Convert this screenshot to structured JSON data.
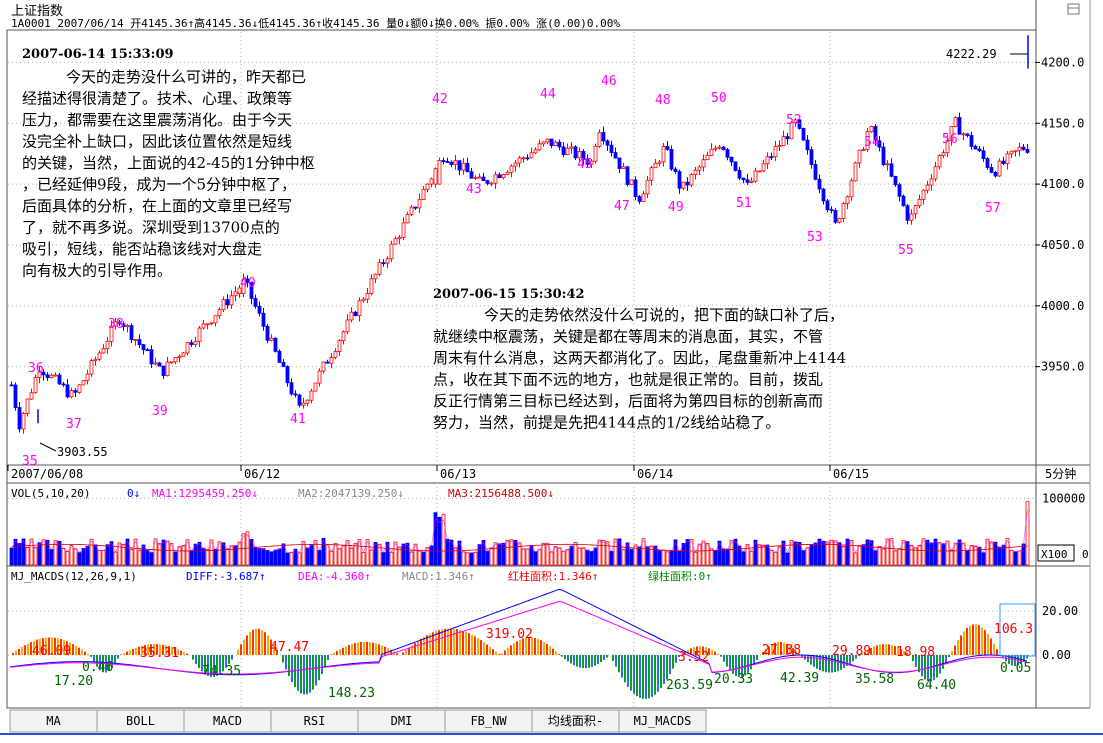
{
  "header": {
    "title": "上证指数",
    "info_line": "1A0001 2007/06/14 开4145.36↑高4145.36↓低4145.36↑收4145.36 量0↓额0↓换0.00% 振0.00% 涨(0.00)0.00%"
  },
  "annotations": {
    "note1_date": "2007-06-14 15:33:09",
    "note1_lines": [
      "今天的走势没什么可讲的，昨天都已",
      "经描述得很清楚了。技术、心理、政策等",
      "压力，都需要在这里震荡消化。由于今天",
      "没完全补上缺口，因此该位置依然是短线",
      "的关键，当然，上面说的42-45的1分钟中枢",
      "，已经延伸9段，成为一个5分钟中枢了，",
      "后面具体的分析，在上面的文章里已经写",
      "了，就不再多说。深圳受到13700点的",
      "吸引，短线，能否站稳该线对大盘走",
      "向有极大的引导作用。"
    ],
    "note2_date": "2007-06-15 15:30:42",
    "note2_lines": [
      "今天的走势依然没什么可说的，把下面的缺口补了后，",
      "就继续中枢震荡，关键是都在等周末的消息面，其实，不管",
      "周末有什么消息，这两天都消化了。因此，尾盘重新冲上4144",
      "点，收在其下面不远的地方，也就是很正常的。目前，拨乱",
      "反正行情第三目标已经达到，后面将为第四目标的创新高而",
      "努力，当然，前提是先把4144点的1/2线给站稳了。"
    ],
    "hi_label": "4222.29",
    "lo_label": "3903.55"
  },
  "main_chart": {
    "period": "5分钟",
    "date_labels": [
      "2007/06/08",
      "06/12",
      "06/13",
      "06/14",
      "06/15"
    ],
    "wave_numbers": [
      "35",
      "36",
      "37",
      "38",
      "39",
      "40",
      "41",
      "42",
      "43",
      "44",
      "45",
      "46",
      "47",
      "48",
      "49",
      "50",
      "51",
      "52",
      "53",
      "54",
      "55",
      "56",
      "57"
    ]
  },
  "volume_panel": {
    "name": "VOL(5,10,20)",
    "value": "0↓",
    "ma1": "MA1:1295459.250↓",
    "ma2": "MA2:2047139.250↓",
    "ma3": "MA3:2156488.500↓",
    "scale_label": "X100",
    "zero_label": "0"
  },
  "macd_panel": {
    "name": "MJ_MACDS(12,26,9,1)",
    "diff": "DIFF:-3.687↑",
    "dea": "DEA:-4.360↑",
    "macd": "MACD:1.346↑",
    "red_area": "红柱面积:1.346↑",
    "green_area": "绿柱面积:0↑",
    "area_labels_red": [
      "46.09",
      "35.31",
      "47.47",
      "319.02",
      "3.52",
      "27.88",
      "29.89",
      "18.98",
      "106.3"
    ],
    "area_labels_green": [
      "17.20",
      "0.46",
      "74.35",
      "148.23",
      "263.59",
      "20.33",
      "42.39",
      "35.58",
      "64.40",
      "0.05"
    ]
  },
  "tabs": [
    "MA",
    "BOLL",
    "MACD",
    "RSI",
    "DMI",
    "FB_NW",
    "均线面积-",
    "MJ_MACDS"
  ],
  "colors": {
    "up": "#ff0000",
    "down": "#0000ff",
    "wave_label": "#ff00ff",
    "diff_line": "#0000ff",
    "dea_line": "#ff00ff",
    "green_bar": "#00aa00",
    "grid": "#b0b0b0"
  },
  "chart_data": [
    {
      "type": "candlestick",
      "title": "上证指数",
      "ylim": [
        3870,
        4225
      ],
      "y_ticks": [
        3950,
        4000,
        4050,
        4100,
        4150,
        4200
      ],
      "x_sessions": [
        "2007/06/08",
        "06/12",
        "06/13",
        "06/14",
        "06/15"
      ],
      "annotated_high": 4222.29,
      "annotated_low": 3903.55,
      "wave_points": [
        {
          "label": "35",
          "value": 3903
        },
        {
          "label": "36",
          "value": 3950
        },
        {
          "label": "37",
          "value": 3925
        },
        {
          "label": "38",
          "value": 3990
        },
        {
          "label": "39",
          "value": 3945
        },
        {
          "label": "40",
          "value": 4020
        },
        {
          "label": "41",
          "value": 3915
        },
        {
          "label": "42",
          "value": 4125
        },
        {
          "label": "43",
          "value": 4100
        },
        {
          "label": "44",
          "value": 4135
        },
        {
          "label": "45",
          "value": 4118
        },
        {
          "label": "46",
          "value": 4148
        },
        {
          "label": "47",
          "value": 4088
        },
        {
          "label": "48",
          "value": 4130
        },
        {
          "label": "49",
          "value": 4095
        },
        {
          "label": "50",
          "value": 4135
        },
        {
          "label": "51",
          "value": 4098
        },
        {
          "label": "52",
          "value": 4150
        },
        {
          "label": "53",
          "value": 4066
        },
        {
          "label": "54",
          "value": 4147
        },
        {
          "label": "55",
          "value": 4070
        },
        {
          "label": "56",
          "value": 4150
        },
        {
          "label": "57",
          "value": 4110
        }
      ]
    },
    {
      "type": "bar",
      "title": "VOL(5,10,20)",
      "ylim": [
        0,
        120000
      ],
      "y_ticks": [
        100000
      ],
      "series": [
        {
          "name": "MA1",
          "value": 1295459.25
        },
        {
          "name": "MA2",
          "value": 2047139.25
        },
        {
          "name": "MA3",
          "value": 2156488.5
        }
      ]
    },
    {
      "type": "line",
      "title": "MJ_MACDS(12,26,9,1)",
      "y_ticks": [
        0,
        20
      ],
      "series": [
        {
          "name": "DIFF",
          "last": -3.687
        },
        {
          "name": "DEA",
          "last": -4.36
        },
        {
          "name": "MACD",
          "last": 1.346
        }
      ]
    }
  ]
}
